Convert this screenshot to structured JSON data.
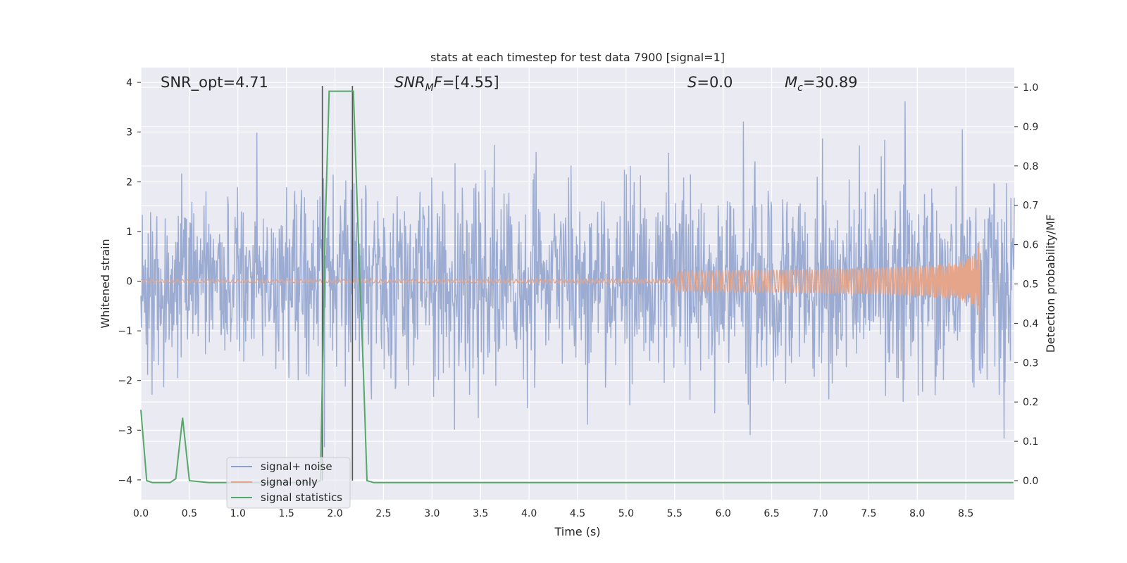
{
  "chart_data": {
    "type": "line",
    "title": "stats at each timestep for test data 7900 [signal=1]",
    "xlabel": "Time (s)",
    "ylabel_left": "Whitened strain",
    "ylabel_right": "Detection probability/MF",
    "xlim": [
      0.0,
      9.0
    ],
    "ylim_left": [
      -4.4,
      4.3
    ],
    "ylim_right": [
      -0.047,
      1.045
    ],
    "x_ticks": [
      "0.0",
      "0.5",
      "1.0",
      "1.5",
      "2.0",
      "2.5",
      "3.0",
      "3.5",
      "4.0",
      "4.5",
      "5.0",
      "5.5",
      "6.0",
      "6.5",
      "7.0",
      "7.5",
      "8.0",
      "8.5"
    ],
    "y_ticks_left": [
      "4",
      "3",
      "2",
      "1",
      "0",
      "−1",
      "−2",
      "−3",
      "−4"
    ],
    "y_ticks_right": [
      "1.0",
      "0.9",
      "0.8",
      "0.7",
      "0.6",
      "0.5",
      "0.4",
      "0.3",
      "0.2",
      "0.1",
      "0.0"
    ],
    "grid": true,
    "legend_position": "lower-left",
    "annotations": {
      "snr_opt": "SNR_opt=4.71",
      "snr_mf": "=[4.55]",
      "s_value": "=0.0",
      "mc_value": "=30.89"
    },
    "series": [
      {
        "name": "signal+ noise",
        "color": "#8da0cb",
        "description_values": "whitened noise, roughly ±2.5 with peaks to about ±3.7",
        "amplitude_range": [
          -4.0,
          3.7
        ]
      },
      {
        "name": "signal only",
        "color": "#e5a58a",
        "chirp_end_time": 8.65,
        "peak_amplitude": 1.1
      },
      {
        "name": "signal statistics",
        "color": "#55a868",
        "axis": "right",
        "points": [
          [
            0.0,
            0.18
          ],
          [
            0.06,
            0.0
          ],
          [
            0.12,
            -0.005
          ],
          [
            0.2,
            -0.005
          ],
          [
            0.3,
            -0.005
          ],
          [
            0.36,
            0.005
          ],
          [
            0.43,
            0.16
          ],
          [
            0.5,
            0.0
          ],
          [
            0.7,
            -0.005
          ],
          [
            1.0,
            -0.005
          ],
          [
            1.5,
            -0.005
          ],
          [
            1.8,
            -0.005
          ],
          [
            1.85,
            0.0
          ],
          [
            1.9,
            0.65
          ],
          [
            1.94,
            0.99
          ],
          [
            2.0,
            0.99
          ],
          [
            2.1,
            0.99
          ],
          [
            2.19,
            0.99
          ],
          [
            2.25,
            0.55
          ],
          [
            2.29,
            0.3
          ],
          [
            2.33,
            0.0
          ],
          [
            2.4,
            -0.005
          ],
          [
            3.0,
            -0.005
          ],
          [
            5.0,
            -0.005
          ],
          [
            7.0,
            -0.005
          ],
          [
            8.5,
            -0.005
          ],
          [
            8.99,
            -0.005
          ]
        ]
      }
    ],
    "vertical_markers": [
      1.87,
      2.18
    ]
  }
}
